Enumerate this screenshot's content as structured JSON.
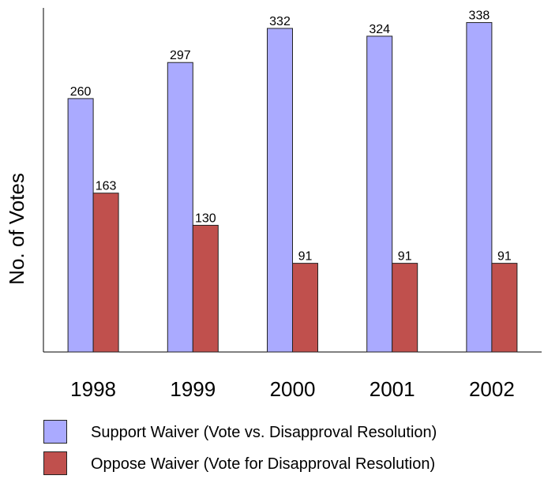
{
  "chart_data": {
    "type": "bar",
    "title": "",
    "xlabel": "",
    "ylabel": "No. of Votes",
    "categories": [
      "1998",
      "1999",
      "2000",
      "2001",
      "2002"
    ],
    "series": [
      {
        "name": "Support Waiver (Vote vs. Disapproval Resolution)",
        "color": "#aaaaff",
        "values": [
          260,
          297,
          332,
          324,
          338
        ]
      },
      {
        "name": "Oppose Waiver (Vote for Disapproval Resolution)",
        "color": "#c0504d",
        "values": [
          163,
          130,
          91,
          91,
          91
        ]
      }
    ],
    "ylim": [
      0,
      350
    ],
    "grid": false,
    "legend_position": "bottom"
  }
}
